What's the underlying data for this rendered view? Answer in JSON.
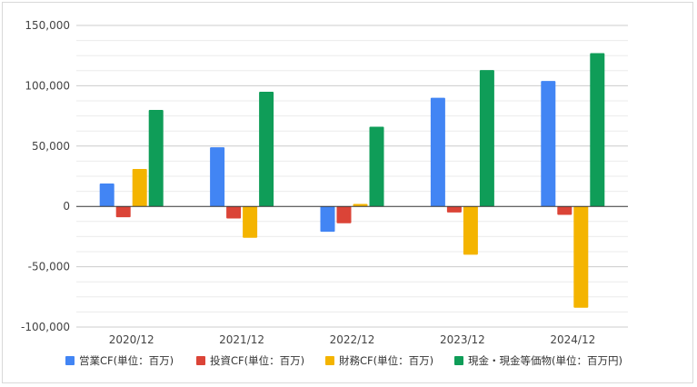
{
  "chart_data": {
    "type": "bar",
    "title": "",
    "xlabel": "",
    "ylabel": "",
    "categories": [
      "2020/12",
      "2021/12",
      "2022/12",
      "2023/12",
      "2024/12"
    ],
    "ylim": [
      -100000,
      150000
    ],
    "yticks": [
      -100000,
      -50000,
      0,
      50000,
      100000,
      150000
    ],
    "ytick_labels": [
      "-100,000",
      "-50,000",
      "0",
      "50,000",
      "100,000",
      "150,000"
    ],
    "grid": true,
    "legend_position": "bottom",
    "series": [
      {
        "name": "営業CF(単位：百万)",
        "color": "#4285f4",
        "values": [
          19000,
          49000,
          -21000,
          90000,
          104000
        ]
      },
      {
        "name": "投資CF(単位：百万)",
        "color": "#db4437",
        "values": [
          -9000,
          -10000,
          -14000,
          -5000,
          -7000
        ]
      },
      {
        "name": "財務CF(単位：百万)",
        "color": "#f4b400",
        "values": [
          31000,
          -26000,
          2000,
          -40000,
          -84000
        ]
      },
      {
        "name": "現金・現金等価物(単位：百万円)",
        "color": "#0f9d58",
        "values": [
          80000,
          95000,
          66000,
          113000,
          127000
        ]
      }
    ]
  }
}
